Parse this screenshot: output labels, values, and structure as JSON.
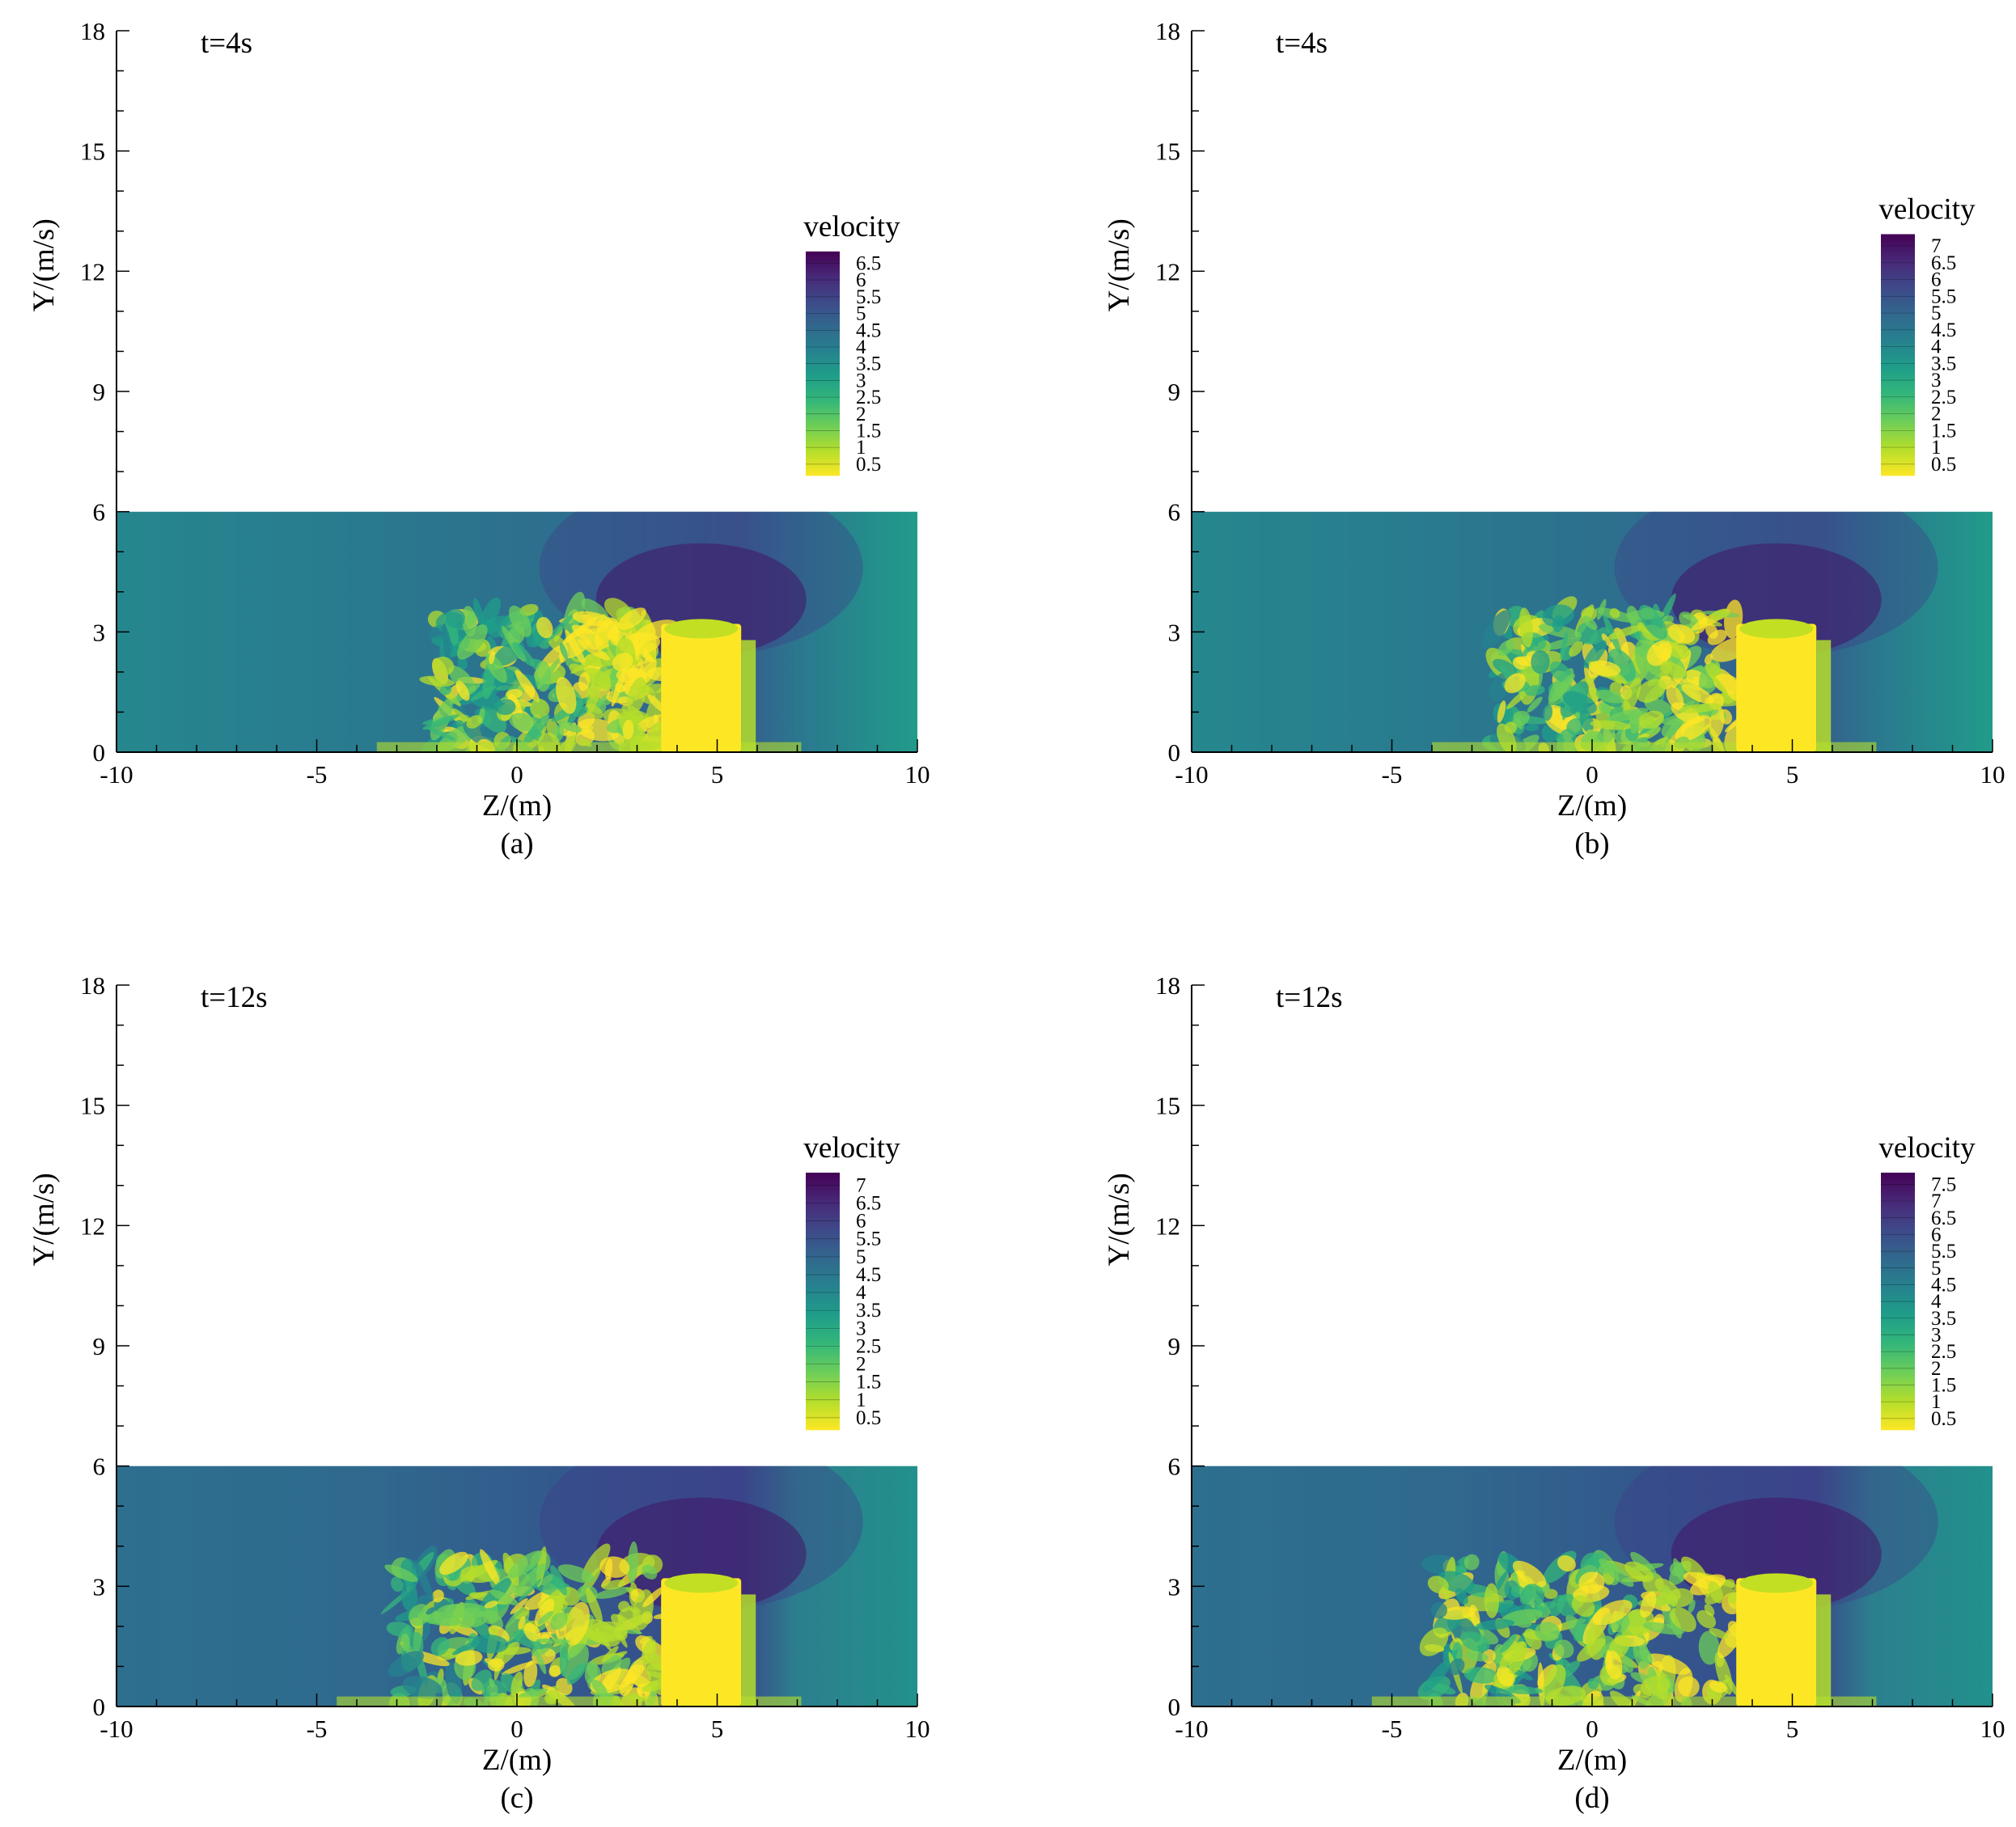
{
  "figure": {
    "panels": [
      {
        "label": "(a)",
        "time_label": "t=4s",
        "legend_title": "velocity",
        "xlabel": "Z/(m)",
        "ylabel": "Y/(m/s)"
      },
      {
        "label": "(b)",
        "time_label": "t=4s",
        "legend_title": "velocity",
        "xlabel": "Z/(m)",
        "ylabel": "Y/(m/s)"
      },
      {
        "label": "(c)",
        "time_label": "t=12s",
        "legend_title": "velocity",
        "xlabel": "Z/(m)",
        "ylabel": "Y/(m/s)"
      },
      {
        "label": "(d)",
        "time_label": "t=12s",
        "legend_title": "velocity",
        "xlabel": "Z/(m)",
        "ylabel": "Y/(m/s)"
      }
    ]
  },
  "colormap": [
    "#fde725",
    "#b5de2b",
    "#6ece58",
    "#35b779",
    "#1f9e89",
    "#26828e",
    "#31688e",
    "#3e4989",
    "#482878",
    "#440154"
  ],
  "chart_data": [
    {
      "type": "heatmap",
      "panel": "(a)",
      "title": "t=4s",
      "xlabel": "Z/(m)",
      "ylabel": "Y/(m/s)",
      "xlim": [
        -10,
        10
      ],
      "ylim": [
        0,
        18
      ],
      "xticks": [
        -10,
        -5,
        0,
        5,
        10
      ],
      "yticks": [
        0,
        3,
        6,
        9,
        12,
        15,
        18
      ],
      "xtick_labels": [
        "-10",
        "-5",
        "0",
        "5",
        "10"
      ],
      "ytick_labels": [
        "0",
        "3",
        "6",
        "9",
        "12",
        "15",
        "18"
      ],
      "field_extent": {
        "z": [
          -10,
          10
        ],
        "y": [
          0,
          6
        ]
      },
      "obstacle": {
        "z": [
          3.6,
          5.6
        ],
        "y": [
          0,
          3.2
        ]
      },
      "turbulent_region_z": [
        -2,
        3.6
      ],
      "colorbar": {
        "title": "velocity",
        "ticks": [
          0.5,
          1,
          1.5,
          2,
          2.5,
          3,
          3.5,
          4,
          4.5,
          5,
          5.5,
          6,
          6.5
        ],
        "tick_labels": [
          "0.5",
          "1",
          "1.5",
          "2",
          "2.5",
          "3",
          "3.5",
          "4",
          "4.5",
          "5",
          "5.5",
          "6",
          "6.5"
        ]
      }
    },
    {
      "type": "heatmap",
      "panel": "(b)",
      "title": "t=4s",
      "xlabel": "Z/(m)",
      "ylabel": "Y/(m/s)",
      "xlim": [
        -10,
        10
      ],
      "ylim": [
        0,
        18
      ],
      "xticks": [
        -10,
        -5,
        0,
        5,
        10
      ],
      "yticks": [
        0,
        3,
        6,
        9,
        12,
        15,
        18
      ],
      "xtick_labels": [
        "-10",
        "-5",
        "0",
        "5",
        "10"
      ],
      "ytick_labels": [
        "0",
        "3",
        "6",
        "9",
        "12",
        "15",
        "18"
      ],
      "field_extent": {
        "z": [
          -10,
          10
        ],
        "y": [
          0,
          6
        ]
      },
      "obstacle": {
        "z": [
          3.6,
          5.6
        ],
        "y": [
          0,
          3.2
        ]
      },
      "turbulent_region_z": [
        -2.5,
        3.6
      ],
      "colorbar": {
        "title": "velocity",
        "ticks": [
          0.5,
          1,
          1.5,
          2,
          2.5,
          3,
          3.5,
          4,
          4.5,
          5,
          5.5,
          6,
          6.5,
          7
        ],
        "tick_labels": [
          "0.5",
          "1",
          "1.5",
          "2",
          "2.5",
          "3",
          "3.5",
          "4",
          "4.5",
          "5",
          "5.5",
          "6",
          "6.5",
          "7"
        ]
      }
    },
    {
      "type": "heatmap",
      "panel": "(c)",
      "title": "t=12s",
      "xlabel": "Z/(m)",
      "ylabel": "Y/(m/s)",
      "xlim": [
        -10,
        10
      ],
      "ylim": [
        0,
        18
      ],
      "xticks": [
        -10,
        -5,
        0,
        5,
        10
      ],
      "yticks": [
        0,
        3,
        6,
        9,
        12,
        15,
        18
      ],
      "xtick_labels": [
        "-10",
        "-5",
        "0",
        "5",
        "10"
      ],
      "ytick_labels": [
        "0",
        "3",
        "6",
        "9",
        "12",
        "15",
        "18"
      ],
      "field_extent": {
        "z": [
          -10,
          10
        ],
        "y": [
          0,
          6
        ]
      },
      "obstacle": {
        "z": [
          3.6,
          5.6
        ],
        "y": [
          0,
          3.2
        ]
      },
      "turbulent_region_z": [
        -3,
        3.6
      ],
      "colorbar": {
        "title": "velocity",
        "ticks": [
          0.5,
          1,
          1.5,
          2,
          2.5,
          3,
          3.5,
          4,
          4.5,
          5,
          5.5,
          6,
          6.5,
          7
        ],
        "tick_labels": [
          "0.5",
          "1",
          "1.5",
          "2",
          "2.5",
          "3",
          "3.5",
          "4",
          "4.5",
          "5",
          "5.5",
          "6",
          "6.5",
          "7"
        ]
      }
    },
    {
      "type": "heatmap",
      "panel": "(d)",
      "title": "t=12s",
      "xlabel": "Z/(m)",
      "ylabel": "Y/(m/s)",
      "xlim": [
        -10,
        10
      ],
      "ylim": [
        0,
        18
      ],
      "xticks": [
        -10,
        -5,
        0,
        5,
        10
      ],
      "yticks": [
        0,
        3,
        6,
        9,
        12,
        15,
        18
      ],
      "xtick_labels": [
        "-10",
        "-5",
        "0",
        "5",
        "10"
      ],
      "ytick_labels": [
        "0",
        "3",
        "6",
        "9",
        "12",
        "15",
        "18"
      ],
      "field_extent": {
        "z": [
          -10,
          10
        ],
        "y": [
          0,
          6
        ]
      },
      "obstacle": {
        "z": [
          3.6,
          5.6
        ],
        "y": [
          0,
          3.2
        ]
      },
      "turbulent_region_z": [
        -4,
        3.6
      ],
      "colorbar": {
        "title": "velocity",
        "ticks": [
          0.5,
          1,
          1.5,
          2,
          2.5,
          3,
          3.5,
          4,
          4.5,
          5,
          5.5,
          6,
          6.5,
          7,
          7.5
        ],
        "tick_labels": [
          "0.5",
          "1",
          "1.5",
          "2",
          "2.5",
          "3",
          "3.5",
          "4",
          "4.5",
          "5",
          "5.5",
          "6",
          "6.5",
          "7",
          "7.5"
        ]
      }
    }
  ]
}
